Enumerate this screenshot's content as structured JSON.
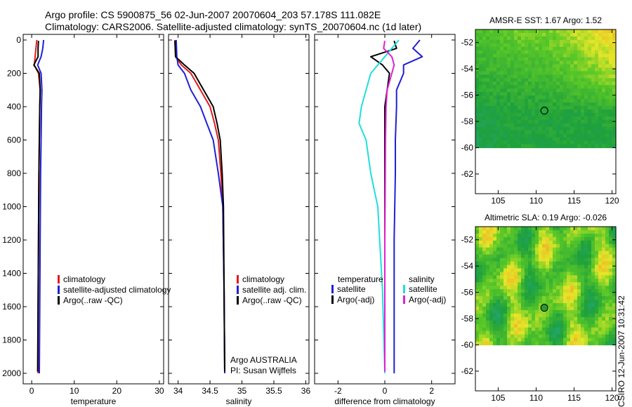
{
  "header": {
    "line1": "Argo profile: CS 5900875_56 02-Jun-2007 20070604_203 57.178S 111.082E",
    "line2": "Climatology: CARS2006. Satellite-adjusted climatology: synTS_20070604.nc (1d later)"
  },
  "side_label": "CSIRO 12-Jun-2007 10:31:42",
  "colors": {
    "climatology": "#e41a1c",
    "satellite": "#1f1fd6",
    "argo": "#000000",
    "salinity_sat": "#22dddd",
    "salinity_argo": "#e020d0"
  },
  "chart_data": [
    {
      "type": "line",
      "panel": "temperature",
      "xlabel": "temperature",
      "ylabel": "",
      "xlim": [
        -2,
        31
      ],
      "ylim": [
        2050,
        0
      ],
      "xticks": [
        0,
        10,
        20,
        30
      ],
      "yticks": [
        0,
        200,
        400,
        600,
        800,
        1000,
        1200,
        1400,
        1600,
        1800,
        2000
      ],
      "legend": [
        "climatology",
        "satellite-adjusted climatology",
        "Argo(..raw -QC)"
      ],
      "series": [
        {
          "name": "climatology",
          "color": "#e41a1c",
          "x": [
            1.2,
            1.0,
            0.8,
            0.6,
            1.6,
            2.0,
            1.9,
            1.8,
            1.7,
            1.6,
            1.5,
            1.5
          ],
          "y": [
            0,
            50,
            100,
            150,
            200,
            300,
            400,
            600,
            800,
            1200,
            1600,
            2000
          ]
        },
        {
          "name": "satellite-adjusted climatology",
          "color": "#1f1fd6",
          "x": [
            2.8,
            2.6,
            2.2,
            1.4,
            2.2,
            2.4,
            2.3,
            2.2,
            2.1,
            2.0,
            1.9,
            1.8
          ],
          "y": [
            0,
            50,
            100,
            150,
            200,
            300,
            400,
            600,
            800,
            1200,
            1600,
            2000
          ]
        },
        {
          "name": "Argo(..raw -QC)",
          "color": "#000000",
          "x": [
            1.6,
            1.5,
            1.5,
            0.5,
            1.8,
            2.0,
            1.9,
            1.8,
            1.7,
            1.6,
            1.5,
            1.4
          ],
          "y": [
            5,
            50,
            100,
            150,
            200,
            300,
            400,
            600,
            800,
            1200,
            1600,
            1990
          ]
        }
      ]
    },
    {
      "type": "line",
      "panel": "salinity",
      "xlabel": "salinity",
      "ylabel": "",
      "xlim": [
        33.85,
        36.05
      ],
      "ylim": [
        2050,
        0
      ],
      "xticks": [
        34,
        34.5,
        35,
        35.5,
        36
      ],
      "legend": [
        "climatology",
        "satellite adj. clim.",
        "Argo(..raw -QC)"
      ],
      "annotation": [
        "Argo AUSTRALIA",
        "PI: Susan Wijffels"
      ],
      "series": [
        {
          "name": "climatology",
          "color": "#e41a1c",
          "x": [
            33.95,
            33.96,
            34.05,
            34.2,
            34.35,
            34.5,
            34.57,
            34.63,
            34.67,
            34.7,
            34.72,
            34.73
          ],
          "y": [
            0,
            100,
            150,
            200,
            300,
            400,
            500,
            600,
            800,
            1000,
            1500,
            2000
          ]
        },
        {
          "name": "satellite adj. clim.",
          "color": "#1f1fd6",
          "x": [
            33.97,
            33.98,
            34.0,
            34.1,
            34.2,
            34.35,
            34.45,
            34.55,
            34.63,
            34.7,
            34.72,
            34.73
          ],
          "y": [
            0,
            100,
            150,
            200,
            300,
            400,
            500,
            600,
            800,
            1000,
            1500,
            2000
          ]
        },
        {
          "name": "Argo(..raw -QC)",
          "color": "#000000",
          "x": [
            33.95,
            33.96,
            34.1,
            34.25,
            34.4,
            34.55,
            34.61,
            34.66,
            34.69,
            34.71,
            34.72,
            34.73
          ],
          "y": [
            5,
            100,
            150,
            200,
            300,
            400,
            500,
            600,
            800,
            1000,
            1500,
            1990
          ]
        }
      ]
    },
    {
      "type": "line",
      "panel": "difference",
      "xlabel": "difference from climatology",
      "ylabel": "",
      "xlim": [
        -3,
        3
      ],
      "ylim": [
        2050,
        0
      ],
      "xticks": [
        -2,
        0,
        2
      ],
      "legend_left_title": "temperature",
      "legend_right_title": "salinity",
      "legend_left": [
        "satellite",
        "Argo(-adj)"
      ],
      "legend_right": [
        "satellite",
        "Argo(-adj)"
      ],
      "series": [
        {
          "name": "temperature satellite",
          "color": "#1f1fd6",
          "x": [
            1.5,
            1.2,
            1.6,
            0.8,
            0.8,
            0.5,
            0.5,
            0.45,
            0.45,
            0.4,
            0.4,
            0.4
          ],
          "y": [
            0,
            50,
            100,
            150,
            200,
            300,
            400,
            600,
            800,
            1200,
            1600,
            2000
          ]
        },
        {
          "name": "temperature Argo(-adj)",
          "color": "#000000",
          "x": [
            0.4,
            0.5,
            -0.6,
            -0.1,
            0.2,
            0.1,
            0.0,
            0.0,
            0.0,
            0.0,
            0.0,
            0.0
          ],
          "y": [
            5,
            50,
            100,
            150,
            200,
            300,
            400,
            600,
            800,
            1200,
            1600,
            1990
          ]
        },
        {
          "name": "salinity satellite",
          "color": "#22dddd",
          "x": [
            0.6,
            0.3,
            0.0,
            -0.6,
            -0.8,
            -1.0,
            -1.1,
            -0.8,
            -0.6,
            -0.3,
            -0.1,
            0.0
          ],
          "y": [
            0,
            50,
            100,
            200,
            300,
            400,
            500,
            600,
            800,
            1000,
            1500,
            2000
          ]
        },
        {
          "name": "salinity Argo(-adj)",
          "color": "#e020d0",
          "x": [
            0.0,
            -0.05,
            0.3,
            0.4,
            0.3,
            0.1,
            0.05,
            0.03,
            0.02,
            0.0,
            0.0,
            0.0
          ],
          "y": [
            5,
            50,
            100,
            150,
            200,
            300,
            400,
            600,
            800,
            1200,
            1600,
            1990
          ]
        }
      ]
    },
    {
      "type": "heatmap",
      "panel": "sst-map",
      "title": "AMSR-E SST: 1.67 Argo: 1.52",
      "xlim": [
        102,
        120.5
      ],
      "ylim": [
        -63.5,
        -51
      ],
      "xticks": [
        105,
        110,
        115,
        120
      ],
      "yticks": [
        -52,
        -54,
        -56,
        -58,
        -60,
        -62
      ],
      "data_lat_range": [
        -60,
        -51
      ],
      "profile_point": [
        111.082,
        -57.178
      ]
    },
    {
      "type": "heatmap",
      "panel": "sla-map",
      "title": "Altimetric SLA: 0.19 Argo: -0.026",
      "xlim": [
        102,
        120.5
      ],
      "ylim": [
        -63.5,
        -51
      ],
      "xticks": [
        105,
        110,
        115,
        120
      ],
      "yticks": [
        -52,
        -54,
        -56,
        -58,
        -60,
        -62
      ],
      "data_lat_range": [
        -60,
        -51
      ],
      "profile_point": [
        111.082,
        -57.178
      ]
    }
  ]
}
